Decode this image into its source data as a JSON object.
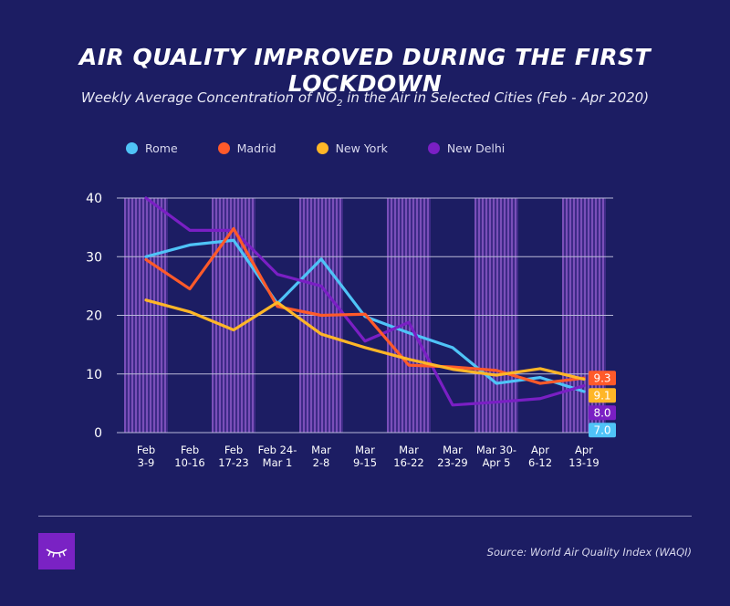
{
  "header": {
    "title": "AIR QUALITY IMPROVED DURING THE FIRST LOCKDOWN",
    "subtitle": "Weekly Average Concentration of NO₂ in the Air in Selected Cities (Feb - Apr 2020)"
  },
  "footer": {
    "source": "Source: World Air Quality Index (WAQI)",
    "logo_icon": "eye-lashes-icon"
  },
  "chart_data": {
    "type": "line",
    "title": "AIR QUALITY IMPROVED DURING THE FIRST LOCKDOWN",
    "subtitle": "Weekly Average Concentration of NO₂ in the Air in Selected Cities (Feb - Apr 2020)",
    "xlabel": "",
    "ylabel": "",
    "ylim": [
      0,
      40
    ],
    "yticks": [
      0,
      10,
      20,
      30,
      40
    ],
    "grid": true,
    "legend_position": "top-left",
    "categories": [
      [
        "Feb",
        "3-9"
      ],
      [
        "Feb",
        "10-16"
      ],
      [
        "Feb",
        "17-23"
      ],
      [
        "Feb 24-",
        "Mar 1"
      ],
      [
        "Mar",
        "2-8"
      ],
      [
        "Mar",
        "9-15"
      ],
      [
        "Mar",
        "16-22"
      ],
      [
        "Mar",
        "23-29"
      ],
      [
        "Mar 30-",
        "Apr 5"
      ],
      [
        "Apr",
        "6-12"
      ],
      [
        "Apr",
        "13-19"
      ]
    ],
    "series": [
      {
        "name": "Rome",
        "color": "#4fc3f7",
        "values": [
          30.0,
          32.0,
          32.8,
          22.0,
          29.6,
          19.8,
          17.0,
          14.5,
          8.4,
          9.4,
          7.0
        ],
        "end_label": "7.0"
      },
      {
        "name": "Madrid",
        "color": "#ff5a2a",
        "values": [
          29.5,
          24.5,
          34.8,
          21.5,
          20.0,
          20.2,
          11.5,
          11.2,
          10.6,
          8.4,
          9.3
        ],
        "end_label": "9.3"
      },
      {
        "name": "New York",
        "color": "#ffb627",
        "values": [
          22.6,
          20.6,
          17.5,
          22.2,
          16.8,
          14.5,
          12.5,
          10.8,
          9.8,
          10.9,
          9.1
        ],
        "end_label": "9.1"
      },
      {
        "name": "New Delhi",
        "color": "#7a1fc4",
        "values": [
          40.0,
          34.5,
          34.5,
          27.0,
          25.0,
          15.6,
          18.8,
          4.7,
          5.2,
          5.8,
          8.0
        ],
        "end_label": "8.0"
      }
    ]
  }
}
